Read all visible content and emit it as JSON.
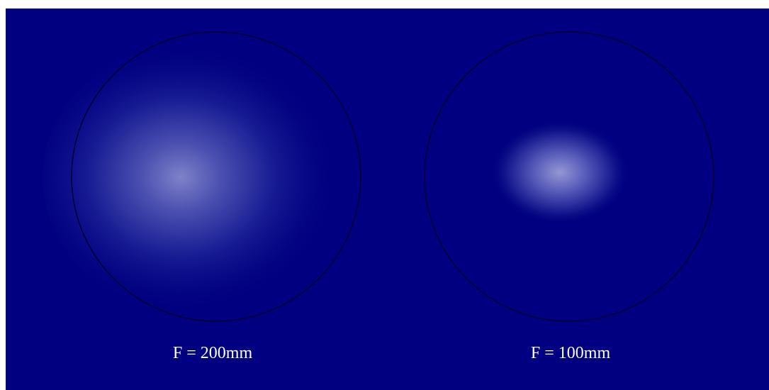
{
  "panels": [
    {
      "label": "F = 200mm"
    },
    {
      "label": "F = 100mm"
    }
  ]
}
